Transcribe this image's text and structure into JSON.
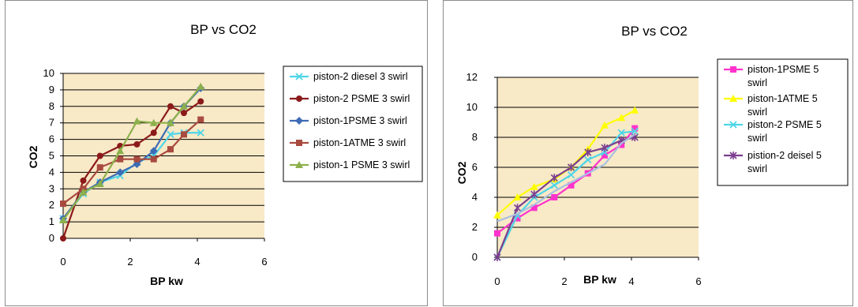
{
  "chart_data": [
    {
      "type": "line",
      "title": "BP vs CO2",
      "xlabel": "BP kw",
      "ylabel": "CO2",
      "xlim": [
        0,
        6
      ],
      "ylim": [
        0,
        10
      ],
      "xticks": [
        0,
        2,
        4,
        6
      ],
      "yticks": [
        0,
        1,
        2,
        3,
        4,
        5,
        6,
        7,
        8,
        9,
        10
      ],
      "grid": true,
      "legend_position": "right",
      "plot_background": "#f8e9c7",
      "series": [
        {
          "name": "piston-2 diesel 3 swirl",
          "color": "#4fd5e8",
          "marker": "x",
          "x": [
            0,
            0.6,
            1.1,
            1.7,
            2.2,
            2.7,
            3.2,
            3.6,
            4.1
          ],
          "y": [
            1.2,
            2.7,
            3.4,
            3.8,
            4.6,
            5.0,
            6.3,
            6.4,
            6.4
          ]
        },
        {
          "name": "piston-2 PSME 3 swirl",
          "color": "#8b1a1a",
          "marker": "circle",
          "x": [
            0,
            0.6,
            1.1,
            1.7,
            2.2,
            2.7,
            3.2,
            3.6,
            4.1
          ],
          "y": [
            0,
            3.5,
            5.0,
            5.6,
            5.7,
            6.4,
            8.0,
            7.6,
            8.3
          ]
        },
        {
          "name": "piston-1PSME 3 swirl",
          "color": "#3d6bb5",
          "marker": "diamond",
          "x": [
            0,
            0.6,
            1.1,
            1.7,
            2.2,
            2.7,
            3.2,
            3.6,
            4.1
          ],
          "y": [
            1.2,
            2.8,
            3.4,
            4.0,
            4.5,
            5.3,
            7.0,
            8.0,
            9.1
          ]
        },
        {
          "name": "piston-1ATME 3 swirl",
          "color": "#a84a3f",
          "marker": "square",
          "x": [
            0,
            0.6,
            1.1,
            1.7,
            2.2,
            2.7,
            3.2,
            3.6,
            4.1
          ],
          "y": [
            2.1,
            3.0,
            4.3,
            4.8,
            4.8,
            4.8,
            5.4,
            6.3,
            7.2
          ]
        },
        {
          "name": "piston-1 PSME 3 swirl",
          "color": "#8cb04b",
          "marker": "triangle",
          "x": [
            0,
            0.6,
            1.1,
            1.7,
            2.2,
            2.7,
            3.2,
            3.6,
            4.1
          ],
          "y": [
            1.1,
            2.8,
            3.3,
            5.3,
            7.1,
            7.0,
            7.0,
            8.0,
            9.2
          ]
        }
      ]
    },
    {
      "type": "line",
      "title": "BP vs CO2",
      "xlabel": "BP kw",
      "ylabel": "CO2",
      "xlim": [
        0,
        6
      ],
      "ylim": [
        0,
        12
      ],
      "xticks": [
        0,
        2,
        4,
        6
      ],
      "yticks": [
        0,
        2,
        4,
        6,
        8,
        10,
        12
      ],
      "grid": true,
      "legend_position": "right",
      "plot_background": "#f8e9c7",
      "series": [
        {
          "name": "piston-1PSME 5 swirl",
          "color": "#ff33cc",
          "marker": "square",
          "x": [
            0,
            0.6,
            1.1,
            1.7,
            2.2,
            2.7,
            3.2,
            3.7,
            4.1
          ],
          "y": [
            1.6,
            2.6,
            3.3,
            4.0,
            4.8,
            5.6,
            6.8,
            7.5,
            8.6
          ]
        },
        {
          "name": "piston-1ATME 5 swirl",
          "color": "#ffff00",
          "marker": "triangle",
          "x": [
            0,
            0.6,
            1.1,
            1.7,
            2.2,
            2.7,
            3.2,
            3.7,
            4.1
          ],
          "y": [
            2.8,
            4.0,
            4.7,
            5.2,
            6.0,
            7.2,
            8.8,
            9.3,
            9.8
          ]
        },
        {
          "name": "piston-2 PSME 5 swirl",
          "color": "#4fd5e8",
          "marker": "x",
          "x": [
            0,
            0.6,
            1.1,
            1.7,
            2.2,
            2.7,
            3.2,
            3.7,
            4.1
          ],
          "y": [
            0,
            2.8,
            4.0,
            4.8,
            5.5,
            6.5,
            7.0,
            8.3,
            8.4
          ]
        },
        {
          "name": "pistion-2 deisel 5 swirl",
          "color": "#7b3f8f",
          "marker": "star",
          "x": [
            0,
            0.6,
            1.1,
            1.7,
            2.2,
            2.7,
            3.2,
            3.7,
            4.1
          ],
          "y": [
            0,
            3.3,
            4.2,
            5.3,
            6.0,
            7.0,
            7.3,
            7.8,
            8.0
          ]
        },
        {
          "name": "",
          "color": "#a9c0e0",
          "marker": "none",
          "x": [
            0,
            0.6,
            1.1,
            1.7,
            2.2,
            2.7,
            3.2,
            3.7,
            4.1
          ],
          "y": [
            2.4,
            2.9,
            3.5,
            4.4,
            5.0,
            5.6,
            6.2,
            7.6,
            8.2
          ]
        }
      ]
    }
  ]
}
